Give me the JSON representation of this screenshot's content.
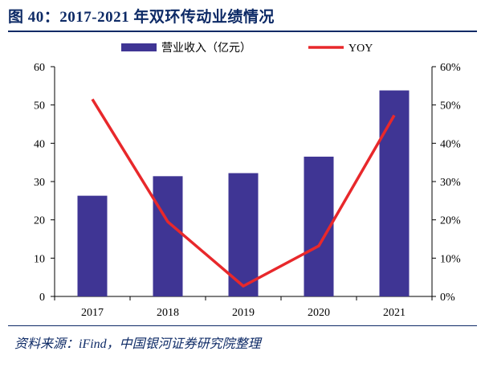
{
  "title": "图 40：2017-2021 年双环传动业绩情况",
  "source": "资料来源：iFind，中国银河证券研究院整理",
  "chart_data": {
    "type": "bar",
    "categories": [
      "2017",
      "2018",
      "2019",
      "2020",
      "2021"
    ],
    "series": [
      {
        "name": "营业收入（亿元）",
        "type": "bar",
        "axis": "left",
        "color": "#3f3594",
        "values": [
          26.3,
          31.4,
          32.2,
          36.5,
          53.8
        ]
      },
      {
        "name": "YOY",
        "type": "line",
        "axis": "right",
        "color": "#e8282b",
        "values": [
          0.515,
          0.195,
          0.027,
          0.132,
          0.473
        ]
      }
    ],
    "ylim_left": [
      0,
      60
    ],
    "yticks_left": [
      "0",
      "10",
      "20",
      "30",
      "40",
      "50",
      "60"
    ],
    "ylim_right": [
      0,
      0.6
    ],
    "yticks_right": [
      "0%",
      "10%",
      "20%",
      "30%",
      "40%",
      "50%",
      "60%"
    ],
    "legend_position": "top",
    "grid": false
  }
}
